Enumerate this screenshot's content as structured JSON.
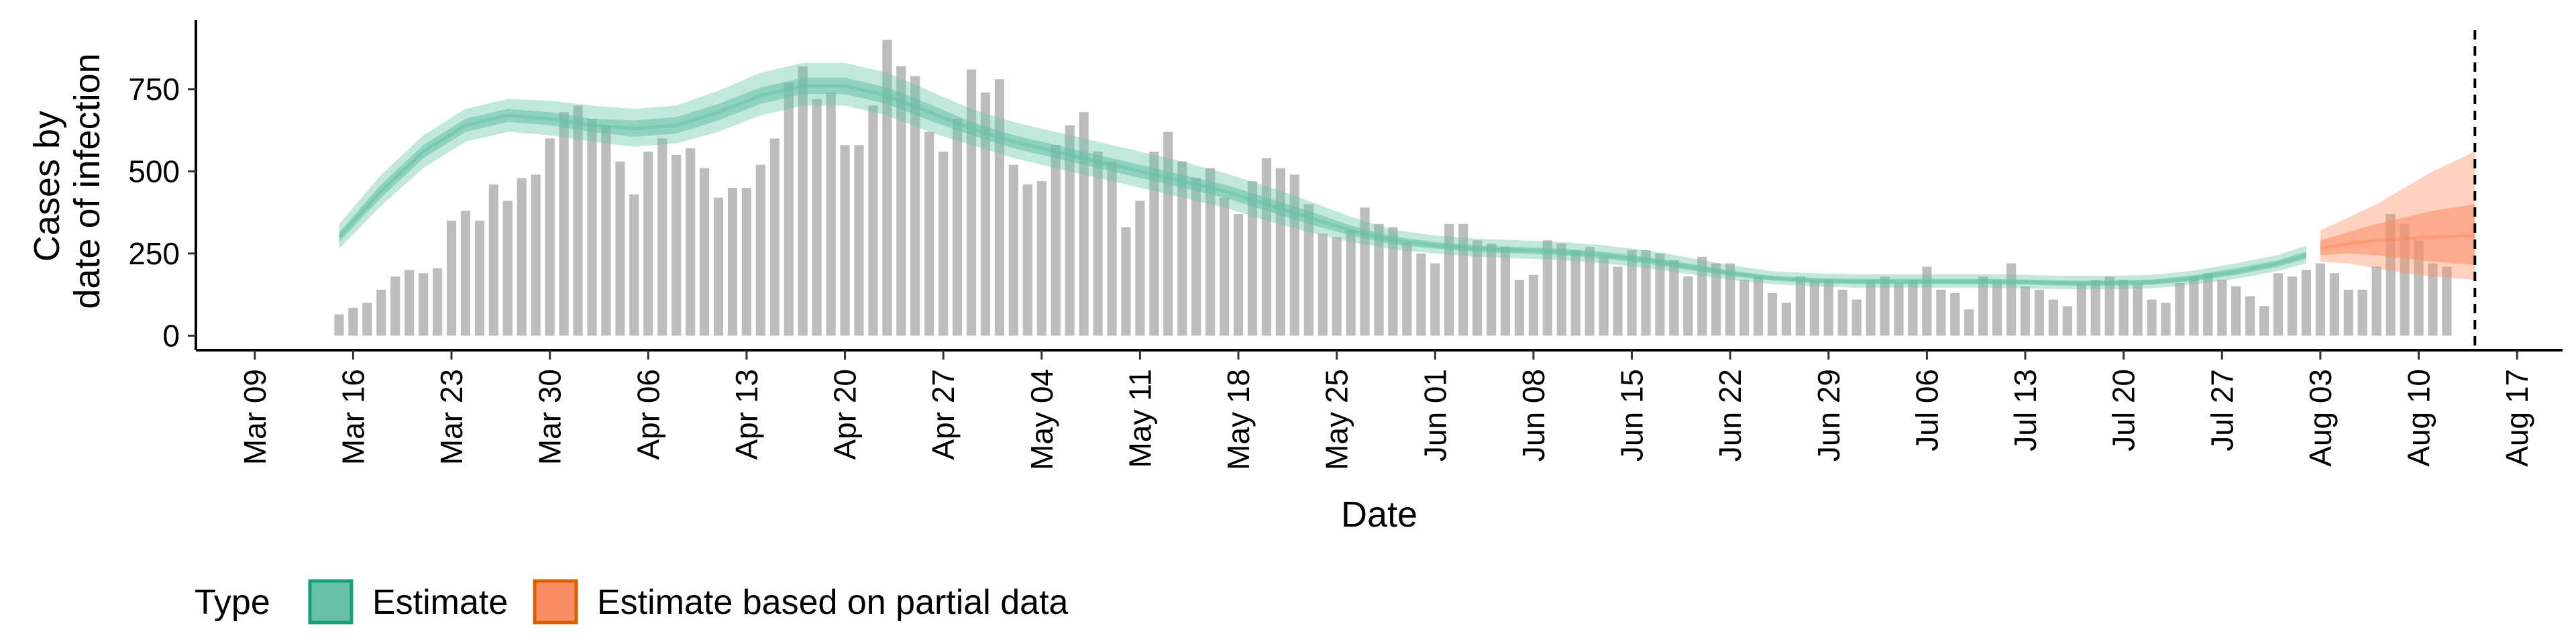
{
  "chart_data": {
    "type": "bar",
    "xlabel": "Date",
    "ylabel_lines": [
      "Cases by",
      "date of infection"
    ],
    "yticks": [
      0,
      250,
      500,
      750
    ],
    "ylim": [
      -40,
      960
    ],
    "xlim": [
      "2020-03-05",
      "2020-08-20"
    ],
    "xtick_dates": [
      "2020-03-09",
      "2020-03-16",
      "2020-03-23",
      "2020-03-30",
      "2020-04-06",
      "2020-04-13",
      "2020-04-20",
      "2020-04-27",
      "2020-05-04",
      "2020-05-11",
      "2020-05-18",
      "2020-05-25",
      "2020-06-01",
      "2020-06-08",
      "2020-06-15",
      "2020-06-22",
      "2020-06-29",
      "2020-07-06",
      "2020-07-13",
      "2020-07-20",
      "2020-07-27",
      "2020-08-03",
      "2020-08-10",
      "2020-08-17"
    ],
    "xtick_labels": [
      "Mar 09",
      "Mar 16",
      "Mar 23",
      "Mar 30",
      "Apr 06",
      "Apr 13",
      "Apr 20",
      "Apr 27",
      "May 04",
      "May 11",
      "May 18",
      "May 25",
      "Jun 01",
      "Jun 08",
      "Jun 15",
      "Jun 22",
      "Jun 29",
      "Jul 06",
      "Jul 13",
      "Jul 20",
      "Jul 27",
      "Aug 03",
      "Aug 10",
      "Aug 17"
    ],
    "bars": {
      "start_date": "2020-03-15",
      "values": [
        65,
        85,
        100,
        140,
        180,
        200,
        190,
        205,
        350,
        380,
        350,
        460,
        410,
        480,
        490,
        600,
        680,
        700,
        660,
        640,
        530,
        430,
        560,
        600,
        550,
        570,
        510,
        420,
        450,
        450,
        520,
        600,
        770,
        820,
        720,
        740,
        580,
        580,
        700,
        900,
        820,
        790,
        620,
        560,
        660,
        810,
        740,
        780,
        520,
        460,
        470,
        580,
        640,
        680,
        560,
        530,
        330,
        410,
        560,
        620,
        530,
        480,
        510,
        420,
        370,
        470,
        540,
        510,
        490,
        400,
        310,
        300,
        320,
        390,
        340,
        330,
        280,
        250,
        220,
        340,
        340,
        290,
        280,
        270,
        170,
        185,
        290,
        280,
        260,
        270,
        240,
        210,
        260,
        260,
        250,
        230,
        180,
        240,
        220,
        220,
        170,
        180,
        130,
        100,
        180,
        170,
        170,
        140,
        110,
        170,
        180,
        160,
        170,
        210,
        140,
        130,
        80,
        180,
        170,
        220,
        150,
        140,
        110,
        90,
        160,
        170,
        180,
        170,
        160,
        110,
        100,
        160,
        180,
        190,
        170,
        150,
        120,
        90,
        190,
        180,
        200,
        220,
        190,
        140,
        140,
        210,
        370,
        340,
        290,
        220,
        210
      ]
    },
    "series": [
      {
        "name": "Estimate",
        "color": "#66c2a5",
        "x": [
          "2020-03-15",
          "2020-03-18",
          "2020-03-21",
          "2020-03-24",
          "2020-03-27",
          "2020-03-30",
          "2020-04-02",
          "2020-04-05",
          "2020-04-08",
          "2020-04-11",
          "2020-04-14",
          "2020-04-17",
          "2020-04-20",
          "2020-04-23",
          "2020-04-26",
          "2020-04-29",
          "2020-05-02",
          "2020-05-05",
          "2020-05-08",
          "2020-05-11",
          "2020-05-14",
          "2020-05-17",
          "2020-05-20",
          "2020-05-23",
          "2020-05-26",
          "2020-05-29",
          "2020-06-01",
          "2020-06-04",
          "2020-06-07",
          "2020-06-10",
          "2020-06-13",
          "2020-06-16",
          "2020-06-19",
          "2020-06-22",
          "2020-06-25",
          "2020-06-28",
          "2020-07-01",
          "2020-07-04",
          "2020-07-07",
          "2020-07-10",
          "2020-07-13",
          "2020-07-16",
          "2020-07-19",
          "2020-07-22",
          "2020-07-25",
          "2020-07-28",
          "2020-07-31",
          "2020-08-02"
        ],
        "median": [
          300,
          440,
          560,
          640,
          670,
          660,
          640,
          630,
          640,
          680,
          730,
          760,
          760,
          730,
          680,
          630,
          590,
          560,
          530,
          500,
          470,
          440,
          400,
          360,
          320,
          290,
          275,
          265,
          260,
          255,
          245,
          230,
          210,
          190,
          175,
          168,
          165,
          165,
          165,
          165,
          163,
          160,
          160,
          163,
          175,
          195,
          220,
          245
        ],
        "inner_lower": [
          285,
          420,
          540,
          620,
          650,
          640,
          620,
          605,
          615,
          655,
          705,
          735,
          735,
          705,
          655,
          610,
          570,
          540,
          510,
          480,
          450,
          420,
          380,
          340,
          305,
          278,
          265,
          255,
          250,
          245,
          235,
          220,
          200,
          182,
          168,
          160,
          157,
          157,
          157,
          157,
          155,
          152,
          152,
          155,
          166,
          185,
          210,
          234
        ],
        "inner_upper": [
          315,
          460,
          580,
          660,
          690,
          680,
          660,
          655,
          665,
          705,
          755,
          785,
          785,
          755,
          705,
          650,
          610,
          580,
          550,
          520,
          490,
          460,
          420,
          380,
          335,
          302,
          285,
          275,
          270,
          265,
          255,
          240,
          220,
          198,
          182,
          176,
          173,
          173,
          173,
          173,
          171,
          168,
          168,
          171,
          184,
          205,
          230,
          256
        ],
        "outer_lower": [
          265,
          395,
          510,
          590,
          620,
          610,
          590,
          575,
          585,
          620,
          670,
          700,
          700,
          670,
          620,
          580,
          540,
          510,
          480,
          450,
          420,
          390,
          350,
          315,
          285,
          262,
          250,
          240,
          235,
          230,
          220,
          206,
          188,
          170,
          157,
          150,
          146,
          146,
          146,
          146,
          144,
          141,
          141,
          144,
          155,
          173,
          197,
          220
        ],
        "outer_upper": [
          340,
          490,
          610,
          690,
          720,
          715,
          700,
          690,
          700,
          745,
          800,
          830,
          830,
          800,
          745,
          690,
          650,
          620,
          590,
          560,
          530,
          495,
          455,
          410,
          362,
          322,
          305,
          295,
          290,
          285,
          275,
          260,
          238,
          214,
          196,
          190,
          187,
          187,
          187,
          187,
          185,
          182,
          182,
          185,
          198,
          220,
          246,
          274
        ]
      },
      {
        "name": "Estimate based on partial data",
        "color": "#fc8d62",
        "x": [
          "2020-08-03",
          "2020-08-05",
          "2020-08-07",
          "2020-08-09",
          "2020-08-11",
          "2020-08-14"
        ],
        "median": [
          265,
          280,
          290,
          295,
          300,
          305
        ],
        "inner_lower": [
          245,
          250,
          245,
          235,
          225,
          215
        ],
        "inner_upper": [
          290,
          315,
          340,
          360,
          380,
          400
        ],
        "outer_lower": [
          225,
          220,
          205,
          190,
          180,
          170
        ],
        "outer_upper": [
          320,
          360,
          400,
          450,
          500,
          560
        ]
      }
    ],
    "vline_date": "2020-08-14",
    "legend": {
      "title": "Type",
      "position": "bottom",
      "items": [
        {
          "label": "Estimate",
          "fill": "#66c2a5",
          "stroke": "#1b9e77"
        },
        {
          "label": "Estimate based on partial data",
          "fill": "#fc8d62",
          "stroke": "#d95f02"
        }
      ]
    },
    "grid": false
  }
}
